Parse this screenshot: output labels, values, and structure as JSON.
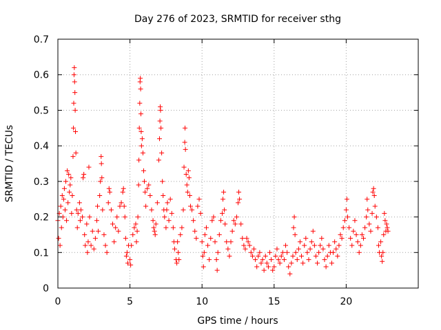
{
  "chart_data": {
    "type": "scatter",
    "title": "Day 276 of 2023, SRMTID for receiver sthg",
    "xlabel": "GPS time / hours",
    "ylabel": "SRMTID / TECUs",
    "xlim": [
      0,
      25
    ],
    "ylim": [
      0,
      0.7
    ],
    "grid": true,
    "marker": "plus",
    "marker_color": "#ff0000",
    "x_ticks": [
      {
        "value": 0,
        "label": "0"
      },
      {
        "value": 5,
        "label": "5"
      },
      {
        "value": 10,
        "label": "10"
      },
      {
        "value": 15,
        "label": "15"
      },
      {
        "value": 20,
        "label": "20"
      }
    ],
    "y_ticks": [
      {
        "value": 0,
        "label": "0"
      },
      {
        "value": 0.1,
        "label": "0.1"
      },
      {
        "value": 0.2,
        "label": "0.2"
      },
      {
        "value": 0.3,
        "label": "0.3"
      },
      {
        "value": 0.4,
        "label": "0.4"
      },
      {
        "value": 0.5,
        "label": "0.5"
      },
      {
        "value": 0.6,
        "label": "0.6"
      },
      {
        "value": 0.7,
        "label": "0.7"
      }
    ],
    "series": [
      {
        "name": "SRMTID",
        "points": [
          [
            0.0,
            0.19
          ],
          [
            0.05,
            0.14
          ],
          [
            0.1,
            0.21
          ],
          [
            0.15,
            0.12
          ],
          [
            0.2,
            0.23
          ],
          [
            0.25,
            0.17
          ],
          [
            0.3,
            0.26
          ],
          [
            0.35,
            0.2
          ],
          [
            0.4,
            0.25
          ],
          [
            0.45,
            0.28
          ],
          [
            0.5,
            0.22
          ],
          [
            0.55,
            0.3
          ],
          [
            0.6,
            0.19
          ],
          [
            0.65,
            0.33
          ],
          [
            0.7,
            0.24
          ],
          [
            0.75,
            0.32
          ],
          [
            0.8,
            0.27
          ],
          [
            0.85,
            0.29
          ],
          [
            0.9,
            0.31
          ],
          [
            0.95,
            0.21
          ],
          [
            1.0,
            0.26
          ],
          [
            1.05,
            0.37
          ],
          [
            1.08,
            0.45
          ],
          [
            1.1,
            0.52
          ],
          [
            1.12,
            0.6
          ],
          [
            1.14,
            0.62
          ],
          [
            1.16,
            0.58
          ],
          [
            1.18,
            0.55
          ],
          [
            1.2,
            0.5
          ],
          [
            1.22,
            0.44
          ],
          [
            1.25,
            0.38
          ],
          [
            1.3,
            0.22
          ],
          [
            1.35,
            0.17
          ],
          [
            1.4,
            0.21
          ],
          [
            1.5,
            0.24
          ],
          [
            1.55,
            0.19
          ],
          [
            1.6,
            0.22
          ],
          [
            1.7,
            0.2
          ],
          [
            1.75,
            0.31
          ],
          [
            1.8,
            0.32
          ],
          [
            1.85,
            0.15
          ],
          [
            1.9,
            0.12
          ],
          [
            2.0,
            0.18
          ],
          [
            2.05,
            0.1
          ],
          [
            2.1,
            0.13
          ],
          [
            2.15,
            0.34
          ],
          [
            2.2,
            0.2
          ],
          [
            2.3,
            0.12
          ],
          [
            2.4,
            0.16
          ],
          [
            2.5,
            0.11
          ],
          [
            2.6,
            0.14
          ],
          [
            2.7,
            0.19
          ],
          [
            2.75,
            0.23
          ],
          [
            2.8,
            0.16
          ],
          [
            2.9,
            0.26
          ],
          [
            2.95,
            0.3
          ],
          [
            3.0,
            0.37
          ],
          [
            3.02,
            0.35
          ],
          [
            3.05,
            0.31
          ],
          [
            3.1,
            0.22
          ],
          [
            3.2,
            0.15
          ],
          [
            3.3,
            0.12
          ],
          [
            3.4,
            0.1
          ],
          [
            3.5,
            0.24
          ],
          [
            3.55,
            0.28
          ],
          [
            3.6,
            0.27
          ],
          [
            3.7,
            0.22
          ],
          [
            3.8,
            0.18
          ],
          [
            3.9,
            0.13
          ],
          [
            4.0,
            0.17
          ],
          [
            4.1,
            0.2
          ],
          [
            4.2,
            0.16
          ],
          [
            4.3,
            0.23
          ],
          [
            4.4,
            0.24
          ],
          [
            4.5,
            0.27
          ],
          [
            4.55,
            0.28
          ],
          [
            4.6,
            0.23
          ],
          [
            4.65,
            0.2
          ],
          [
            4.7,
            0.14
          ],
          [
            4.75,
            0.09
          ],
          [
            4.8,
            0.1
          ],
          [
            4.85,
            0.07
          ],
          [
            4.9,
            0.12
          ],
          [
            5.0,
            0.08
          ],
          [
            5.05,
            0.065
          ],
          [
            5.1,
            0.12
          ],
          [
            5.2,
            0.15
          ],
          [
            5.3,
            0.17
          ],
          [
            5.4,
            0.18
          ],
          [
            5.45,
            0.13
          ],
          [
            5.5,
            0.16
          ],
          [
            5.55,
            0.2
          ],
          [
            5.6,
            0.29
          ],
          [
            5.62,
            0.36
          ],
          [
            5.65,
            0.45
          ],
          [
            5.68,
            0.52
          ],
          [
            5.7,
            0.58
          ],
          [
            5.72,
            0.59
          ],
          [
            5.74,
            0.56
          ],
          [
            5.76,
            0.49
          ],
          [
            5.78,
            0.44
          ],
          [
            5.8,
            0.4
          ],
          [
            5.85,
            0.42
          ],
          [
            5.9,
            0.38
          ],
          [
            5.95,
            0.33
          ],
          [
            6.0,
            0.3
          ],
          [
            6.05,
            0.27
          ],
          [
            6.1,
            0.23
          ],
          [
            6.2,
            0.28
          ],
          [
            6.3,
            0.29
          ],
          [
            6.4,
            0.26
          ],
          [
            6.5,
            0.22
          ],
          [
            6.6,
            0.19
          ],
          [
            6.65,
            0.17
          ],
          [
            6.7,
            0.16
          ],
          [
            6.75,
            0.15
          ],
          [
            6.8,
            0.18
          ],
          [
            6.9,
            0.24
          ],
          [
            7.0,
            0.36
          ],
          [
            7.05,
            0.42
          ],
          [
            7.08,
            0.47
          ],
          [
            7.1,
            0.51
          ],
          [
            7.12,
            0.5
          ],
          [
            7.15,
            0.45
          ],
          [
            7.2,
            0.38
          ],
          [
            7.25,
            0.3
          ],
          [
            7.3,
            0.26
          ],
          [
            7.35,
            0.22
          ],
          [
            7.4,
            0.2
          ],
          [
            7.5,
            0.17
          ],
          [
            7.55,
            0.22
          ],
          [
            7.6,
            0.24
          ],
          [
            7.7,
            0.19
          ],
          [
            7.8,
            0.25
          ],
          [
            7.9,
            0.21
          ],
          [
            8.0,
            0.17
          ],
          [
            8.05,
            0.13
          ],
          [
            8.1,
            0.11
          ],
          [
            8.2,
            0.08
          ],
          [
            8.25,
            0.07
          ],
          [
            8.3,
            0.13
          ],
          [
            8.35,
            0.1
          ],
          [
            8.4,
            0.08
          ],
          [
            8.5,
            0.15
          ],
          [
            8.6,
            0.17
          ],
          [
            8.7,
            0.22
          ],
          [
            8.75,
            0.34
          ],
          [
            8.8,
            0.41
          ],
          [
            8.82,
            0.45
          ],
          [
            8.85,
            0.39
          ],
          [
            8.9,
            0.32
          ],
          [
            8.95,
            0.29
          ],
          [
            9.0,
            0.27
          ],
          [
            9.05,
            0.33
          ],
          [
            9.1,
            0.31
          ],
          [
            9.15,
            0.26
          ],
          [
            9.2,
            0.23
          ],
          [
            9.3,
            0.22
          ],
          [
            9.4,
            0.19
          ],
          [
            9.5,
            0.16
          ],
          [
            9.6,
            0.14
          ],
          [
            9.7,
            0.23
          ],
          [
            9.8,
            0.25
          ],
          [
            9.9,
            0.21
          ],
          [
            10.0,
            0.13
          ],
          [
            10.05,
            0.09
          ],
          [
            10.1,
            0.06
          ],
          [
            10.15,
            0.1
          ],
          [
            10.2,
            0.15
          ],
          [
            10.3,
            0.17
          ],
          [
            10.4,
            0.12
          ],
          [
            10.5,
            0.08
          ],
          [
            10.6,
            0.14
          ],
          [
            10.7,
            0.19
          ],
          [
            10.8,
            0.2
          ],
          [
            10.9,
            0.13
          ],
          [
            11.0,
            0.08
          ],
          [
            11.05,
            0.05
          ],
          [
            11.1,
            0.1
          ],
          [
            11.2,
            0.15
          ],
          [
            11.3,
            0.19
          ],
          [
            11.4,
            0.21
          ],
          [
            11.45,
            0.25
          ],
          [
            11.5,
            0.27
          ],
          [
            11.55,
            0.22
          ],
          [
            11.6,
            0.18
          ],
          [
            11.7,
            0.13
          ],
          [
            11.8,
            0.11
          ],
          [
            11.9,
            0.09
          ],
          [
            12.0,
            0.13
          ],
          [
            12.1,
            0.16
          ],
          [
            12.2,
            0.19
          ],
          [
            12.3,
            0.18
          ],
          [
            12.4,
            0.2
          ],
          [
            12.5,
            0.24
          ],
          [
            12.55,
            0.27
          ],
          [
            12.6,
            0.25
          ],
          [
            12.7,
            0.18
          ],
          [
            12.8,
            0.14
          ],
          [
            12.9,
            0.12
          ],
          [
            13.0,
            0.11
          ],
          [
            13.1,
            0.14
          ],
          [
            13.2,
            0.13
          ],
          [
            13.3,
            0.12
          ],
          [
            13.4,
            0.1
          ],
          [
            13.5,
            0.09
          ],
          [
            13.6,
            0.11
          ],
          [
            13.7,
            0.08
          ],
          [
            13.8,
            0.06
          ],
          [
            13.9,
            0.09
          ],
          [
            14.0,
            0.1
          ],
          [
            14.1,
            0.07
          ],
          [
            14.2,
            0.08
          ],
          [
            14.3,
            0.05
          ],
          [
            14.4,
            0.09
          ],
          [
            14.5,
            0.07
          ],
          [
            14.6,
            0.06
          ],
          [
            14.7,
            0.1
          ],
          [
            14.8,
            0.08
          ],
          [
            14.9,
            0.05
          ],
          [
            15.0,
            0.06
          ],
          [
            15.1,
            0.09
          ],
          [
            15.2,
            0.11
          ],
          [
            15.3,
            0.08
          ],
          [
            15.4,
            0.07
          ],
          [
            15.5,
            0.09
          ],
          [
            15.6,
            0.1
          ],
          [
            15.7,
            0.08
          ],
          [
            15.8,
            0.12
          ],
          [
            15.9,
            0.1
          ],
          [
            16.0,
            0.06
          ],
          [
            16.1,
            0.04
          ],
          [
            16.2,
            0.07
          ],
          [
            16.3,
            0.09
          ],
          [
            16.35,
            0.17
          ],
          [
            16.4,
            0.2
          ],
          [
            16.45,
            0.15
          ],
          [
            16.5,
            0.1
          ],
          [
            16.6,
            0.08
          ],
          [
            16.7,
            0.11
          ],
          [
            16.8,
            0.13
          ],
          [
            16.9,
            0.09
          ],
          [
            17.0,
            0.07
          ],
          [
            17.1,
            0.12
          ],
          [
            17.2,
            0.14
          ],
          [
            17.3,
            0.1
          ],
          [
            17.4,
            0.08
          ],
          [
            17.5,
            0.11
          ],
          [
            17.6,
            0.13
          ],
          [
            17.7,
            0.16
          ],
          [
            17.8,
            0.12
          ],
          [
            17.9,
            0.09
          ],
          [
            18.0,
            0.07
          ],
          [
            18.1,
            0.1
          ],
          [
            18.2,
            0.12
          ],
          [
            18.3,
            0.14
          ],
          [
            18.4,
            0.11
          ],
          [
            18.5,
            0.08
          ],
          [
            18.6,
            0.06
          ],
          [
            18.7,
            0.09
          ],
          [
            18.8,
            0.12
          ],
          [
            18.9,
            0.1
          ],
          [
            19.0,
            0.07
          ],
          [
            19.1,
            0.1
          ],
          [
            19.2,
            0.13
          ],
          [
            19.3,
            0.11
          ],
          [
            19.4,
            0.09
          ],
          [
            19.5,
            0.12
          ],
          [
            19.6,
            0.15
          ],
          [
            19.7,
            0.14
          ],
          [
            19.8,
            0.17
          ],
          [
            19.9,
            0.19
          ],
          [
            20.0,
            0.22
          ],
          [
            20.05,
            0.25
          ],
          [
            20.1,
            0.2
          ],
          [
            20.2,
            0.17
          ],
          [
            20.3,
            0.14
          ],
          [
            20.4,
            0.12
          ],
          [
            20.5,
            0.16
          ],
          [
            20.6,
            0.19
          ],
          [
            20.7,
            0.15
          ],
          [
            20.8,
            0.13
          ],
          [
            20.9,
            0.1
          ],
          [
            21.0,
            0.12
          ],
          [
            21.1,
            0.15
          ],
          [
            21.2,
            0.14
          ],
          [
            21.3,
            0.17
          ],
          [
            21.4,
            0.2
          ],
          [
            21.45,
            0.25
          ],
          [
            21.5,
            0.22
          ],
          [
            21.6,
            0.18
          ],
          [
            21.7,
            0.16
          ],
          [
            21.8,
            0.21
          ],
          [
            21.85,
            0.27
          ],
          [
            21.9,
            0.28
          ],
          [
            21.95,
            0.26
          ],
          [
            22.0,
            0.23
          ],
          [
            22.1,
            0.2
          ],
          [
            22.2,
            0.17
          ],
          [
            22.25,
            0.12
          ],
          [
            22.3,
            0.1
          ],
          [
            22.4,
            0.13
          ],
          [
            22.45,
            0.09
          ],
          [
            22.5,
            0.075
          ],
          [
            22.55,
            0.1
          ],
          [
            22.6,
            0.15
          ],
          [
            22.65,
            0.21
          ],
          [
            22.7,
            0.19
          ],
          [
            22.75,
            0.16
          ],
          [
            22.8,
            0.18
          ],
          [
            22.85,
            0.17
          ],
          [
            22.9,
            0.16
          ]
        ]
      }
    ]
  }
}
